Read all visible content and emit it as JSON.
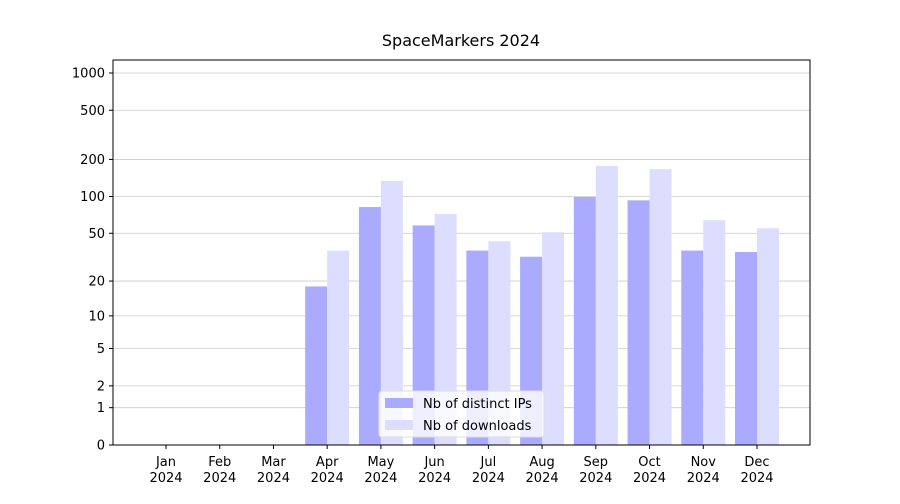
{
  "chart_data": {
    "type": "bar",
    "title": "SpaceMarkers 2024",
    "categories": [
      "Jan 2024",
      "Feb 2024",
      "Mar 2024",
      "Apr 2024",
      "May 2024",
      "Jun 2024",
      "Jul 2024",
      "Aug 2024",
      "Sep 2024",
      "Oct 2024",
      "Nov 2024",
      "Dec 2024"
    ],
    "series": [
      {
        "name": "Nb of distinct IPs",
        "color": "#aaaaff",
        "values": [
          0,
          0,
          0,
          18,
          82,
          58,
          36,
          32,
          99,
          93,
          36,
          35
        ]
      },
      {
        "name": "Nb of downloads",
        "color": "#ddddff",
        "values": [
          0,
          0,
          0,
          36,
          134,
          72,
          43,
          51,
          177,
          167,
          64,
          55
        ]
      }
    ],
    "yscale": "log10(y+1)",
    "ylim": [
      0,
      1273
    ],
    "yticks": [
      0,
      1,
      2,
      5,
      10,
      20,
      50,
      100,
      200,
      500,
      1000
    ],
    "grid": true,
    "legend": "lower center"
  }
}
